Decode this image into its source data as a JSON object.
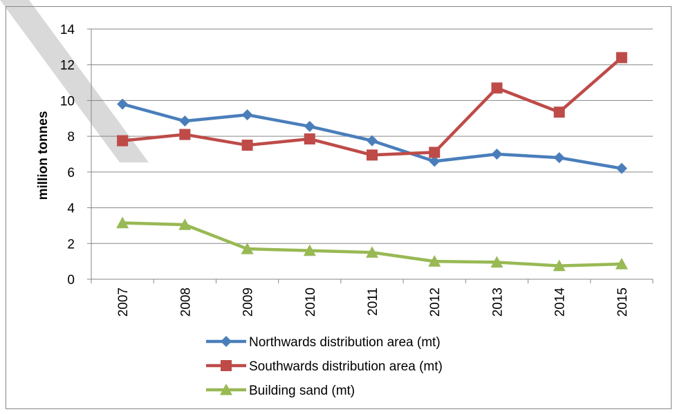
{
  "chart_data": {
    "type": "line",
    "title": "",
    "xlabel": "",
    "ylabel": "million tonnes",
    "ylim": [
      0,
      14
    ],
    "yticks": [
      0,
      2,
      4,
      6,
      8,
      10,
      12,
      14
    ],
    "grid": "horizontal",
    "legend_position": "bottom",
    "categories": [
      "2007",
      "2008",
      "2009",
      "2010",
      "2011",
      "2012",
      "2013",
      "2014",
      "2015"
    ],
    "series": [
      {
        "name": "Northwards distribution area (mt)",
        "color": "#4a7ebb",
        "marker": "diamond",
        "values": [
          9.8,
          8.85,
          9.2,
          8.55,
          7.75,
          6.6,
          7.0,
          6.8,
          6.2
        ]
      },
      {
        "name": "Southwards distribution area (mt)",
        "color": "#be4b48",
        "marker": "square",
        "values": [
          7.75,
          8.1,
          7.5,
          7.85,
          6.95,
          7.1,
          10.7,
          9.35,
          12.4
        ]
      },
      {
        "name": "Building sand (mt)",
        "color": "#98b954",
        "marker": "triangle",
        "values": [
          3.15,
          3.05,
          1.7,
          1.6,
          1.5,
          1.0,
          0.95,
          0.75,
          0.85
        ]
      }
    ]
  }
}
